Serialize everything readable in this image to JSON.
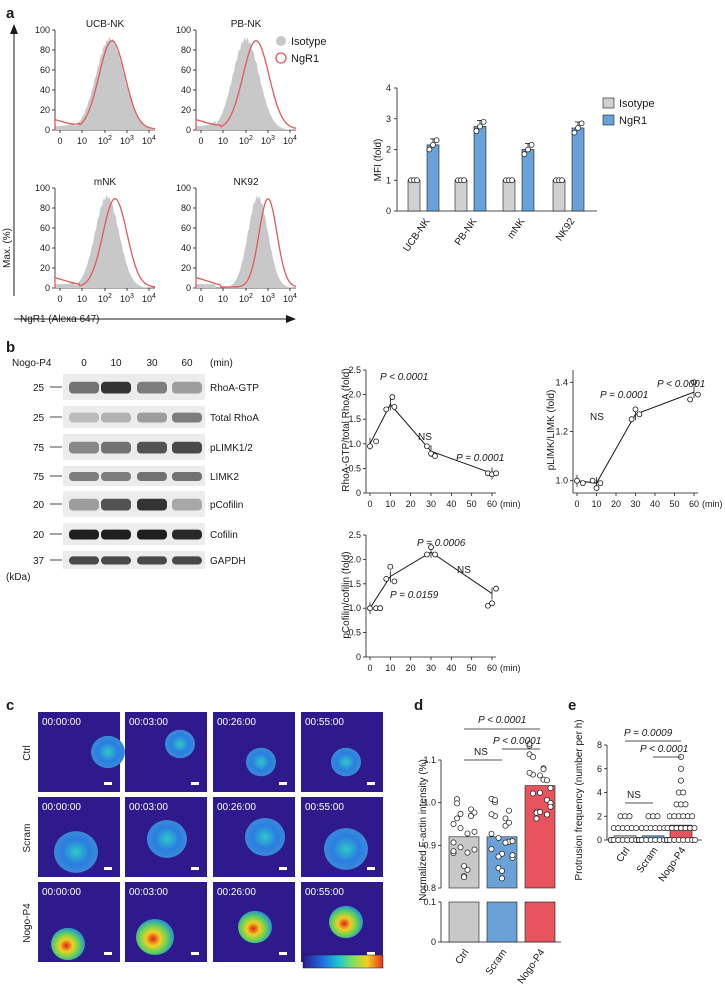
{
  "panel_labels": {
    "a": "a",
    "b": "b",
    "c": "c",
    "d": "d",
    "e": "e"
  },
  "colors": {
    "isotype_fill": "#c8c8c8",
    "ngr1_line": "#e05a5a",
    "bar_iso": "#d0d0d0",
    "bar_ngr1": "#6aa2d8",
    "bar_nogo": "#e8545d",
    "bar_ctrl": "#c8c8c8",
    "bar_scram": "#6aa2d8",
    "micro_bg": "#2e1a8c"
  },
  "panel_a": {
    "histograms": [
      {
        "title": "UCB-NK"
      },
      {
        "title": "PB-NK"
      },
      {
        "title": "mNK"
      },
      {
        "title": "NK92"
      }
    ],
    "hist_yticks": [
      "0",
      "20",
      "40",
      "60",
      "80",
      "100"
    ],
    "hist_xticks": [
      "0",
      "10",
      "10",
      "10",
      "10"
    ],
    "hist_xtick_exp": [
      "",
      "",
      "2",
      "3",
      "4"
    ],
    "ylabel": "Max. (%)",
    "xlabel": "NgR1 (Alexa 647)",
    "legend": {
      "isotype": "Isotype",
      "ngr1": "NgR1"
    },
    "mfi_chart": {
      "ylabel": "MFI (fold)",
      "yticks": [
        "0",
        "1",
        "2",
        "3",
        "4"
      ],
      "legend": {
        "isotype": "Isotype",
        "ngr1": "NgR1"
      }
    }
  },
  "panel_b": {
    "treatment_label": "Nogo-P4",
    "time_points": [
      "0",
      "10",
      "30",
      "60"
    ],
    "time_unit": "(min)",
    "blots": [
      {
        "mw": "25",
        "name": "RhoA-GTP"
      },
      {
        "mw": "25",
        "name": "Total RhoA"
      },
      {
        "mw": "75",
        "name": "pLIMK1/2"
      },
      {
        "mw": "75",
        "name": "LIMK2"
      },
      {
        "mw": "20",
        "name": "pCofilin"
      },
      {
        "mw": "20",
        "name": "Cofilin"
      },
      {
        "mw": "37",
        "name": "GAPDH"
      }
    ],
    "kda": "(kDa)",
    "rhoa_chart": {
      "ylabel": "RhoA-GTP/total RhoA (fold)",
      "yticks": [
        "0",
        "0.5",
        "1.0",
        "1.5",
        "2.0",
        "2.5"
      ],
      "xticks": [
        "0",
        "10",
        "20",
        "30",
        "40",
        "50",
        "60"
      ],
      "xunit": "(min)",
      "annotations": {
        "p1": "P < 0.0001",
        "ns": "NS",
        "p2": "P = 0.0001"
      }
    },
    "limk_chart": {
      "ylabel": "pLIMK/LIMK (fold)",
      "yticks": [
        "1.0",
        "1.2",
        "1.4"
      ],
      "xticks": [
        "0",
        "10",
        "20",
        "30",
        "40",
        "50",
        "60"
      ],
      "xunit": "(min)",
      "annotations": {
        "ns": "NS",
        "p1": "P = 0.0001",
        "p2": "P < 0.0001"
      }
    },
    "cofilin_chart": {
      "ylabel": "pCofilin/cofilin (fold)",
      "yticks": [
        "0",
        "0.5",
        "1.0",
        "1.5",
        "2.0",
        "2.5"
      ],
      "xticks": [
        "0",
        "10",
        "20",
        "30",
        "40",
        "50",
        "60"
      ],
      "xunit": "(min)",
      "annotations": {
        "p1": "P = 0.0006",
        "p2": "P = 0.0159",
        "ns": "NS"
      }
    }
  },
  "panel_c": {
    "rows": [
      "Ctrl",
      "Scram",
      "Nogo-P4"
    ],
    "timestamps": [
      "00:00:00",
      "00:03:00",
      "00:26:00",
      "00:55:00"
    ]
  },
  "panel_d": {
    "ylabel": "Normalized F-actin intensity (%)",
    "yticks": [
      "0",
      "0.1",
      "0.8",
      "0.9",
      "1.0",
      "1.1"
    ],
    "categories": [
      "Ctrl",
      "Scram",
      "Nogo-P4"
    ],
    "annotations": {
      "p_top": "P < 0.0001",
      "ns": "NS",
      "p2": "P < 0.0001"
    }
  },
  "panel_e": {
    "ylabel": "Protrusion frequency (number per h)",
    "yticks": [
      "0",
      "2",
      "4",
      "6",
      "8"
    ],
    "categories": [
      "Ctrl",
      "Scram",
      "Nogo-P4"
    ],
    "annotations": {
      "p_top": "P = 0.0009",
      "p2": "P < 0.0001",
      "ns": "NS"
    }
  },
  "chart_data": [
    {
      "type": "bar",
      "title": "",
      "categories": [
        "UCB-NK",
        "PB-NK",
        "mNK",
        "NK92"
      ],
      "series": [
        {
          "name": "Isotype",
          "values": [
            1.0,
            1.0,
            1.0,
            1.0
          ]
        },
        {
          "name": "NgR1",
          "values": [
            2.15,
            2.75,
            2.0,
            2.7
          ]
        }
      ],
      "ylabel": "MFI (fold)",
      "ylim": [
        0,
        4
      ],
      "legend": "top-right"
    },
    {
      "type": "line",
      "x": [
        0,
        10,
        30,
        60
      ],
      "series": [
        {
          "values": [
            1.0,
            1.8,
            0.85,
            0.4
          ]
        }
      ],
      "points": [
        [
          0,
          0.95
        ],
        [
          3,
          1.05
        ],
        [
          8,
          1.7
        ],
        [
          11,
          1.95
        ],
        [
          12,
          1.75
        ],
        [
          28,
          0.95
        ],
        [
          30,
          0.8
        ],
        [
          32,
          0.75
        ],
        [
          58,
          0.4
        ],
        [
          60,
          0.38
        ],
        [
          62,
          0.4
        ]
      ],
      "ylabel": "RhoA-GTP/total RhoA (fold)",
      "xlabel": "(min)",
      "ylim": [
        0,
        2.5
      ],
      "xlim": [
        0,
        60
      ]
    },
    {
      "type": "line",
      "x": [
        0,
        10,
        30,
        60
      ],
      "series": [
        {
          "values": [
            1.0,
            0.99,
            1.27,
            1.36
          ]
        }
      ],
      "points": [
        [
          0,
          1.0
        ],
        [
          3,
          0.99
        ],
        [
          8,
          1.0
        ],
        [
          10,
          0.97
        ],
        [
          12,
          0.99
        ],
        [
          28,
          1.25
        ],
        [
          30,
          1.29
        ],
        [
          32,
          1.27
        ],
        [
          58,
          1.33
        ],
        [
          60,
          1.4
        ],
        [
          62,
          1.35
        ]
      ],
      "ylabel": "pLIMK/LIMK (fold)",
      "xlabel": "(min)",
      "ylim": [
        0.95,
        1.45
      ],
      "xlim": [
        0,
        60
      ]
    },
    {
      "type": "line",
      "x": [
        0,
        10,
        30,
        60
      ],
      "series": [
        {
          "values": [
            1.0,
            1.65,
            2.15,
            1.3
          ]
        }
      ],
      "points": [
        [
          0,
          1.0
        ],
        [
          3,
          1.0
        ],
        [
          5,
          1.0
        ],
        [
          8,
          1.6
        ],
        [
          10,
          1.85
        ],
        [
          12,
          1.55
        ],
        [
          28,
          2.1
        ],
        [
          30,
          2.25
        ],
        [
          32,
          2.1
        ],
        [
          58,
          1.05
        ],
        [
          60,
          1.1
        ],
        [
          62,
          1.4
        ]
      ],
      "ylabel": "pCofilin/cofilin (fold)",
      "xlabel": "(min)",
      "ylim": [
        0,
        2.5
      ],
      "xlim": [
        0,
        60
      ]
    },
    {
      "type": "bar",
      "categories": [
        "Ctrl",
        "Scram",
        "Nogo-P4"
      ],
      "values": [
        0.92,
        0.92,
        1.04
      ],
      "ylabel": "Normalized F-actin intensity (%)"
    },
    {
      "type": "bar",
      "categories": [
        "Ctrl",
        "Scram",
        "Nogo-P4"
      ],
      "values": [
        0.35,
        0.35,
        1.25
      ],
      "ylabel": "Protrusion frequency (number per h)",
      "ylim": [
        0,
        8
      ]
    }
  ]
}
